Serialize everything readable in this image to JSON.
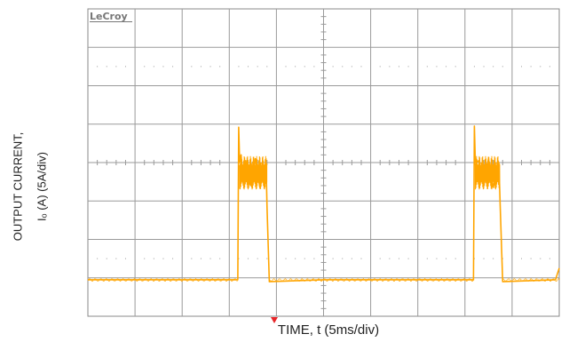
{
  "brand": "LeCroy",
  "ylabel_line1": "OUTPUT CURRENT,",
  "ylabel_line2": "Iₒ (A) (5A/div)",
  "xlabel": "TIME, t (5ms/div)",
  "colors": {
    "trace": "#ffa500",
    "grid": "#9a9a9a",
    "frame": "#8a8a8a",
    "marker": "#e8262a"
  },
  "chart_data": {
    "type": "line",
    "title": "",
    "xlabel": "TIME, t (5ms/div)",
    "ylabel": "OUTPUT CURRENT, Iₒ (A) (5A/div)",
    "x_units": "div",
    "y_units": "div",
    "xlim": [
      0,
      10
    ],
    "ylim": [
      -4,
      4
    ],
    "grid": true,
    "divisions": {
      "x": 10,
      "y": 8
    },
    "series": [
      {
        "values_note": "",
        "points": [
          [
            0.0,
            -3.05
          ],
          [
            3.18,
            -3.05
          ],
          [
            3.2,
            0.92
          ],
          [
            3.22,
            0.0
          ],
          [
            3.25,
            0.2
          ],
          [
            3.3,
            -0.55
          ],
          [
            3.35,
            0.05
          ],
          [
            3.45,
            -0.6
          ],
          [
            3.55,
            0.1
          ],
          [
            3.65,
            -0.65
          ],
          [
            3.78,
            0.0
          ],
          [
            3.8,
            -1.15
          ],
          [
            3.85,
            -3.1
          ],
          [
            5.0,
            -3.05
          ],
          [
            8.18,
            -3.05
          ],
          [
            8.2,
            0.95
          ],
          [
            8.22,
            0.0
          ],
          [
            8.3,
            0.05
          ],
          [
            8.4,
            -0.6
          ],
          [
            8.5,
            0.1
          ],
          [
            8.6,
            -0.65
          ],
          [
            8.72,
            0.0
          ],
          [
            8.75,
            -1.2
          ],
          [
            8.8,
            -3.1
          ],
          [
            9.92,
            -3.05
          ],
          [
            10.0,
            -2.75
          ]
        ]
      }
    ]
  }
}
